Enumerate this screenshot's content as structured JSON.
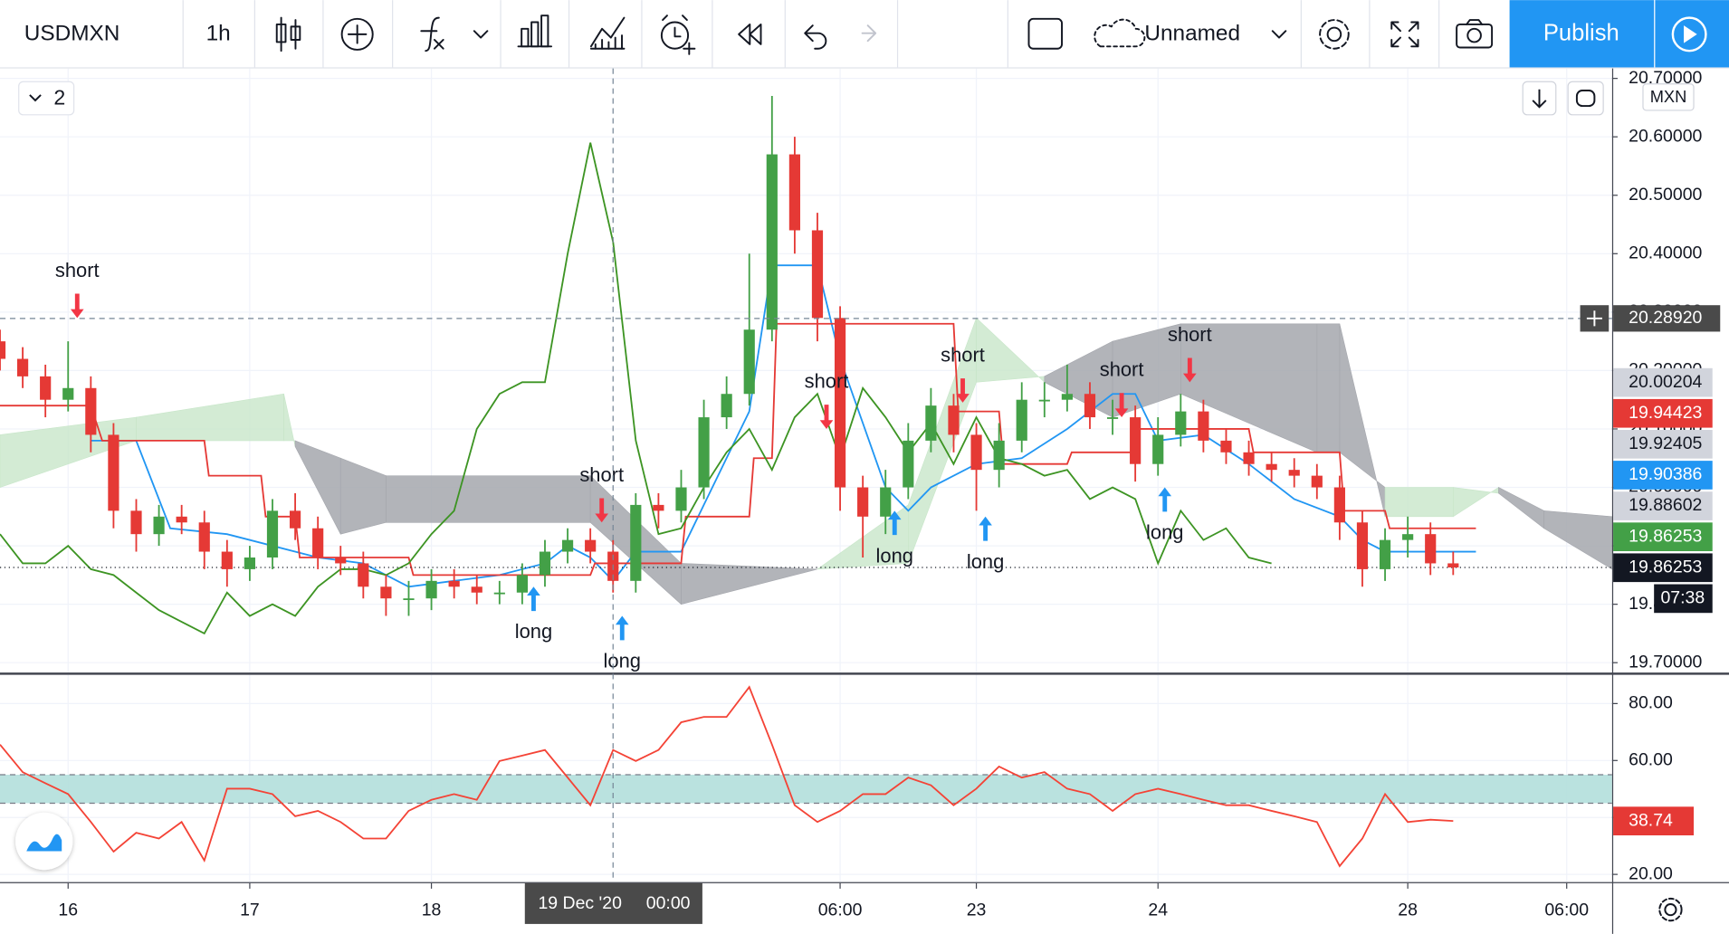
{
  "toolbar": {
    "symbol": "USDMXN",
    "interval": "1h",
    "layout_name": "Unnamed",
    "publish": "Publish"
  },
  "legend_count": "2",
  "chart_data": [
    {
      "type": "candlestick",
      "currency": "MXN",
      "x": [
        0,
        1,
        2,
        3,
        4,
        5,
        6,
        7,
        8,
        9,
        10,
        11,
        12,
        13,
        14,
        15,
        16,
        17,
        18,
        19,
        20,
        21,
        22,
        23,
        24,
        25,
        26,
        27,
        28,
        29,
        30,
        31,
        32,
        33,
        34,
        35,
        36,
        37,
        38,
        39,
        40,
        41,
        42,
        43,
        44,
        45,
        46,
        47,
        48,
        49,
        50,
        51,
        52,
        53,
        54,
        55,
        56,
        57,
        58,
        59,
        60,
        61,
        62,
        63,
        64
      ],
      "open": [
        20.25,
        20.22,
        20.19,
        20.15,
        20.17,
        20.09,
        19.96,
        19.92,
        19.95,
        19.94,
        19.89,
        19.86,
        19.88,
        19.96,
        19.93,
        19.88,
        19.87,
        19.83,
        19.81,
        19.81,
        19.84,
        19.83,
        19.82,
        19.82,
        19.85,
        19.89,
        19.91,
        19.89,
        19.84,
        19.97,
        19.96,
        20.0,
        20.12,
        20.16,
        20.27,
        20.57,
        20.44,
        20.29,
        20.0,
        19.95,
        20.0,
        20.08,
        20.14,
        20.09,
        20.03,
        20.08,
        20.15,
        20.15,
        20.16,
        20.12,
        20.12,
        20.04,
        20.09,
        20.13,
        20.08,
        20.06,
        20.04,
        20.03,
        20.02,
        20.0,
        19.94,
        19.86,
        19.91,
        19.92,
        19.87
      ],
      "high": [
        20.27,
        20.24,
        20.21,
        20.25,
        20.19,
        20.11,
        19.98,
        19.97,
        19.97,
        19.96,
        19.91,
        19.9,
        19.98,
        19.99,
        19.95,
        19.9,
        19.89,
        19.85,
        19.84,
        19.86,
        19.86,
        19.85,
        19.84,
        19.87,
        19.91,
        19.93,
        19.93,
        19.91,
        19.99,
        19.99,
        20.03,
        20.15,
        20.19,
        20.4,
        20.67,
        20.6,
        20.47,
        20.31,
        20.02,
        20.03,
        20.11,
        20.17,
        20.16,
        20.11,
        20.11,
        20.18,
        20.18,
        20.21,
        20.18,
        20.15,
        20.14,
        20.12,
        20.16,
        20.15,
        20.1,
        20.08,
        20.06,
        20.05,
        20.04,
        20.02,
        19.96,
        19.93,
        19.95,
        19.94,
        19.89
      ],
      "low": [
        20.2,
        20.17,
        20.12,
        20.13,
        20.06,
        19.93,
        19.89,
        19.9,
        19.92,
        19.86,
        19.83,
        19.84,
        19.86,
        19.91,
        19.86,
        19.85,
        19.81,
        19.78,
        19.78,
        19.79,
        19.81,
        19.8,
        19.8,
        19.8,
        19.83,
        19.87,
        19.87,
        19.82,
        19.82,
        19.93,
        19.94,
        19.98,
        20.1,
        20.14,
        20.25,
        20.4,
        20.25,
        19.96,
        19.88,
        19.92,
        19.98,
        20.06,
        20.06,
        19.96,
        20.0,
        20.06,
        20.12,
        20.13,
        20.1,
        20.09,
        20.01,
        20.02,
        20.07,
        20.06,
        20.04,
        20.02,
        20.01,
        20.0,
        19.98,
        19.91,
        19.83,
        19.84,
        19.88,
        19.85,
        19.85
      ],
      "close": [
        20.22,
        20.19,
        20.15,
        20.17,
        20.09,
        19.96,
        19.92,
        19.95,
        19.94,
        19.89,
        19.86,
        19.88,
        19.96,
        19.93,
        19.88,
        19.87,
        19.83,
        19.81,
        19.81,
        19.84,
        19.83,
        19.82,
        19.82,
        19.85,
        19.89,
        19.91,
        19.89,
        19.84,
        19.97,
        19.96,
        20.0,
        20.12,
        20.16,
        20.27,
        20.57,
        20.44,
        20.29,
        20.0,
        19.95,
        20.0,
        20.08,
        20.14,
        20.09,
        20.03,
        20.08,
        20.15,
        20.15,
        20.16,
        20.12,
        20.12,
        20.04,
        20.09,
        20.13,
        20.08,
        20.06,
        20.04,
        20.03,
        20.02,
        20.0,
        19.94,
        19.86,
        19.91,
        19.92,
        19.87,
        19.863
      ],
      "up_color": "#43a047",
      "down_color": "#e53935",
      "xlim": [
        0,
        71
      ],
      "ylim": [
        19.683,
        20.717
      ],
      "xticks": [
        {
          "value": 3,
          "label": "16"
        },
        {
          "value": 11,
          "label": "17"
        },
        {
          "value": 19,
          "label": "18"
        },
        {
          "value": 37,
          "label": "06:00"
        },
        {
          "value": 43,
          "label": "23"
        },
        {
          "value": 51,
          "label": "24"
        },
        {
          "value": 62,
          "label": "28"
        },
        {
          "value": 69,
          "label": "06:00"
        }
      ],
      "yticks": [
        {
          "value": 20.7,
          "label": "20.70000"
        },
        {
          "value": 20.6,
          "label": "20.60000"
        },
        {
          "value": 20.5,
          "label": "20.50000"
        },
        {
          "value": 20.4,
          "label": "20.40000"
        },
        {
          "value": 20.3,
          "label": "20.30000"
        },
        {
          "value": 20.2,
          "label": "20.20000"
        },
        {
          "value": 20.1,
          "label": "20.10000"
        },
        {
          "value": 20.0,
          "label": "20.00000"
        },
        {
          "value": 19.9,
          "label": "19.90000"
        },
        {
          "value": 19.8,
          "label": "19.80000"
        },
        {
          "value": 19.7,
          "label": "19.70000"
        }
      ],
      "grid": true,
      "series": [
        {
          "color": "#2196f3",
          "x": [
            4,
            6,
            7.5,
            10,
            14,
            16,
            18,
            20,
            22,
            24,
            25,
            26,
            27,
            28,
            30,
            31,
            33,
            34,
            36,
            37,
            39,
            40,
            41,
            43,
            45,
            47,
            49,
            50,
            51,
            53,
            55,
            57,
            59,
            60,
            61,
            63,
            65
          ],
          "values": [
            20.08,
            20.08,
            19.93,
            19.92,
            19.88,
            19.87,
            19.83,
            19.84,
            19.85,
            19.87,
            19.9,
            19.88,
            19.84,
            19.89,
            19.89,
            19.97,
            20.13,
            20.38,
            20.38,
            20.22,
            20.0,
            19.96,
            20.0,
            20.04,
            20.05,
            20.1,
            20.16,
            20.16,
            20.08,
            20.09,
            20.04,
            19.98,
            19.95,
            19.91,
            19.89,
            19.89,
            19.89
          ]
        },
        {
          "color": "#e53935",
          "x": [
            0,
            4,
            4.5,
            9,
            9.2,
            11.5,
            11.7,
            13,
            13.2,
            18,
            18.2,
            26,
            26.2,
            30,
            30.2,
            33,
            33.2,
            34,
            34.2,
            42,
            42.2,
            44,
            44.2,
            47,
            47.2,
            50,
            50.2,
            55,
            55.2,
            59,
            59.2,
            61,
            61.2,
            65
          ],
          "values": [
            20.14,
            20.14,
            20.08,
            20.08,
            20.02,
            20.02,
            19.95,
            19.95,
            19.88,
            19.88,
            19.85,
            19.85,
            19.87,
            19.87,
            19.95,
            19.95,
            20.05,
            20.05,
            20.28,
            20.28,
            20.13,
            20.13,
            20.04,
            20.04,
            20.06,
            20.06,
            20.1,
            20.1,
            20.06,
            20.06,
            19.96,
            19.96,
            19.93,
            19.93
          ]
        },
        {
          "color": "#3d9423",
          "x": [
            0,
            1,
            2,
            3,
            4,
            5,
            6,
            7,
            8,
            9,
            10,
            11,
            12,
            13,
            14,
            15,
            16,
            17,
            18,
            19,
            20,
            21,
            22,
            23,
            24,
            25,
            26,
            27,
            28,
            29,
            30,
            31,
            32,
            33,
            34,
            35,
            36,
            37,
            38,
            39,
            40,
            41,
            42,
            43,
            44,
            45,
            46,
            47,
            48,
            49,
            50,
            51,
            52,
            53,
            54,
            55,
            56
          ],
          "values": [
            19.92,
            19.87,
            19.87,
            19.9,
            19.86,
            19.85,
            19.82,
            19.79,
            19.77,
            19.75,
            19.82,
            19.78,
            19.8,
            19.78,
            19.83,
            19.86,
            19.86,
            19.85,
            19.87,
            19.92,
            19.96,
            20.1,
            20.16,
            20.18,
            20.18,
            20.4,
            20.59,
            20.42,
            20.08,
            19.92,
            19.93,
            20.0,
            20.06,
            20.1,
            20.03,
            20.12,
            20.16,
            20.05,
            20.17,
            20.12,
            20.06,
            20.11,
            20.04,
            20.12,
            20.05,
            20.04,
            20.02,
            20.03,
            19.98,
            20.0,
            19.98,
            19.87,
            19.96,
            19.91,
            19.93,
            19.88,
            19.87
          ]
        }
      ],
      "cloud": {
        "x": [
          0,
          6,
          12.5,
          13,
          15,
          17,
          26,
          30,
          36,
          40,
          43,
          46,
          49,
          52,
          58,
          59,
          61,
          64,
          66,
          68,
          71
        ],
        "span_a": [
          20.09,
          20.12,
          20.16,
          20.07,
          19.92,
          19.94,
          19.94,
          19.8,
          19.86,
          19.97,
          20.29,
          20.18,
          20.12,
          20.16,
          20.06,
          20.06,
          20.0,
          20.0,
          19.99,
          19.93,
          19.86
        ],
        "span_b": [
          20.0,
          20.08,
          20.08,
          20.08,
          20.05,
          20.02,
          20.02,
          19.87,
          19.86,
          19.87,
          20.18,
          20.19,
          20.25,
          20.28,
          20.28,
          20.28,
          19.95,
          19.95,
          20.0,
          19.96,
          19.95
        ],
        "up_color": "#c8e6c9",
        "down_color": "#a5a7ad"
      },
      "signals": [
        {
          "label": "short",
          "x": 3.4,
          "price": 20.29,
          "color": "#f23645"
        },
        {
          "label": "short",
          "x": 26.5,
          "price": 19.94,
          "color": "#f23645"
        },
        {
          "label": "short",
          "x": 36.4,
          "price": 20.1,
          "color": "#f23645"
        },
        {
          "label": "short",
          "x": 42.4,
          "price": 20.145,
          "color": "#f23645"
        },
        {
          "label": "short",
          "x": 49.4,
          "price": 20.12,
          "color": "#f23645"
        },
        {
          "label": "short",
          "x": 52.4,
          "price": 20.18,
          "color": "#f23645"
        },
        {
          "label": "long",
          "x": 23.5,
          "price": 19.83,
          "color": "#2196f3"
        },
        {
          "label": "long",
          "x": 27.4,
          "price": 19.78,
          "color": "#2196f3"
        },
        {
          "label": "long",
          "x": 39.4,
          "price": 19.96,
          "color": "#2196f3"
        },
        {
          "label": "long",
          "x": 43.4,
          "price": 19.95,
          "color": "#2196f3"
        },
        {
          "label": "long",
          "x": 51.3,
          "price": 20.0,
          "color": "#2196f3"
        }
      ],
      "crosshair": {
        "x": 27,
        "y": {
          "value": 20.2892,
          "label": "20.28920"
        },
        "x_label": "19 Dec '20",
        "x_time": "00:00"
      },
      "price_badges": [
        {
          "value": 20.00204,
          "label": "20.00204",
          "bg": "#d1d4dc",
          "fg": "#131722"
        },
        {
          "value": 19.94423,
          "label": "19.94423",
          "bg": "#e53935",
          "fg": "#ffffff"
        },
        {
          "value": 19.92405,
          "label": "19.92405",
          "bg": "#d1d4dc",
          "fg": "#131722"
        },
        {
          "value": 19.90386,
          "label": "19.90386",
          "bg": "#2196f3",
          "fg": "#ffffff"
        },
        {
          "value": 19.88602,
          "label": "19.88602",
          "bg": "#d1d4dc",
          "fg": "#131722"
        },
        {
          "value": 19.86253,
          "label": "19.86253",
          "bg": "#43a047",
          "fg": "#ffffff"
        },
        {
          "value": 19.86253,
          "label": "19.86253",
          "bg": "#131722",
          "fg": "#ffffff"
        }
      ],
      "countdown": "07:38"
    },
    {
      "type": "line",
      "x": [
        0,
        1,
        2,
        3,
        4,
        5,
        6,
        7,
        8,
        9,
        10,
        11,
        12,
        13,
        14,
        15,
        16,
        17,
        18,
        19,
        20,
        21,
        22,
        23,
        24,
        25,
        26,
        27,
        28,
        29,
        30,
        31,
        32,
        33,
        34,
        35,
        36,
        37,
        38,
        39,
        40,
        41,
        42,
        43,
        44,
        45,
        46,
        47,
        48,
        49,
        50,
        51,
        52,
        53,
        54,
        55,
        56,
        57,
        58,
        59,
        60,
        61,
        62,
        63,
        64
      ],
      "values": [
        65.6,
        55.9,
        52.0,
        48.2,
        38.4,
        28.0,
        34.6,
        32.6,
        38.4,
        24.9,
        50.1,
        50.1,
        48.2,
        40.4,
        42.3,
        38.4,
        32.6,
        32.6,
        42.3,
        46.2,
        48.2,
        46.2,
        59.8,
        61.7,
        63.7,
        54.0,
        44.3,
        63.7,
        59.8,
        63.7,
        73.4,
        75.3,
        75.3,
        85.8,
        65.6,
        44.3,
        38.4,
        42.3,
        48.2,
        48.2,
        54.0,
        51.3,
        44.3,
        50.1,
        57.9,
        54.0,
        55.9,
        50.1,
        48.2,
        42.3,
        48.2,
        50.1,
        48.2,
        46.2,
        44.3,
        44.3,
        42.3,
        40.4,
        38.4,
        22.9,
        32.6,
        48.2,
        38.4,
        39.2,
        38.74
      ],
      "color": "#f44336",
      "xlim": [
        0,
        71
      ],
      "ylim": [
        17.3,
        90.1
      ],
      "yticks": [
        {
          "value": 80,
          "label": "80.00"
        },
        {
          "value": 60,
          "label": "60.00"
        },
        {
          "value": 40,
          "label": "40.00"
        },
        {
          "value": 20,
          "label": "20.00"
        }
      ],
      "grid": true,
      "band": [
        45,
        55
      ],
      "band_color": "#b2dfdb",
      "last_label": 38.74
    }
  ]
}
